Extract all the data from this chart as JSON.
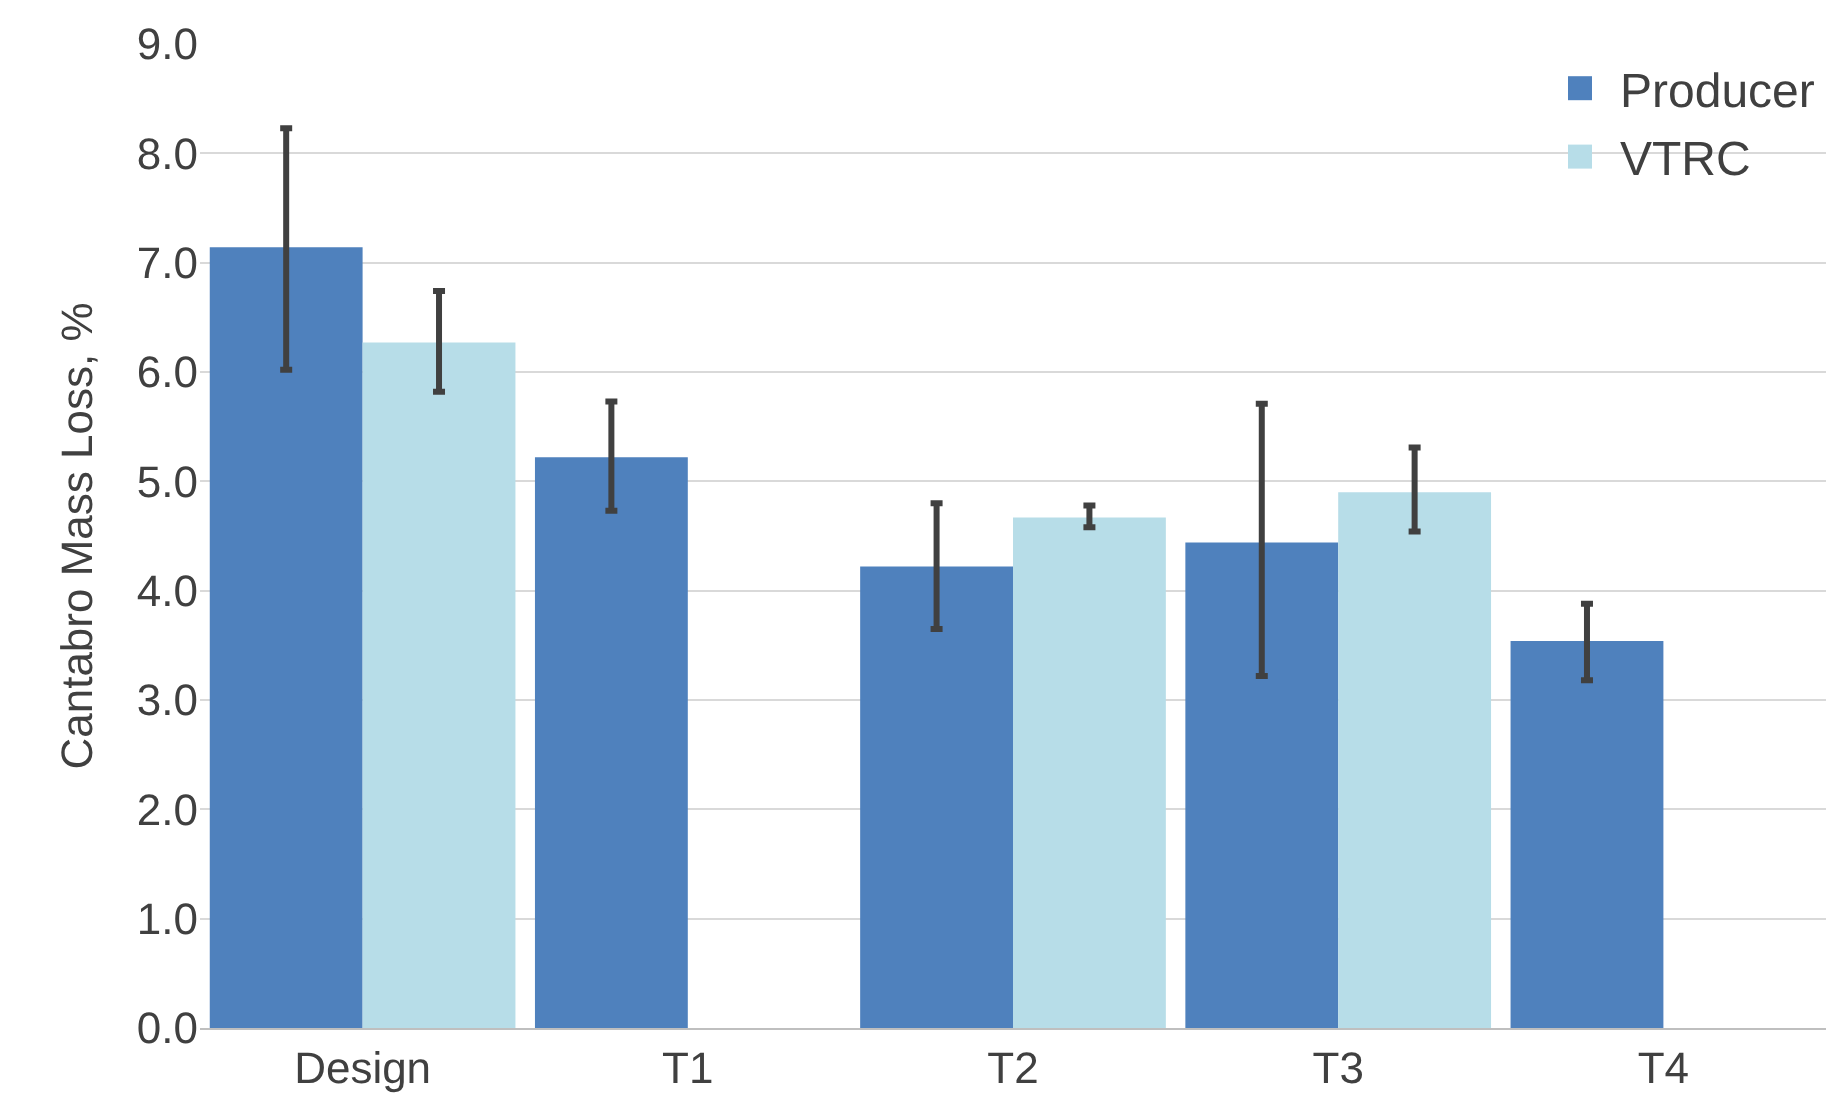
{
  "chart_data": {
    "type": "bar",
    "ylabel": "Cantabro Mass Loss, %",
    "categories": [
      "Design",
      "T1",
      "T2",
      "T3",
      "T4"
    ],
    "series": [
      {
        "name": "Producer",
        "color": "#4f81bd",
        "values": [
          7.14,
          5.22,
          4.22,
          4.44,
          3.54
        ],
        "errors": [
          [
            6.02,
            8.23
          ],
          [
            4.73,
            5.73
          ],
          [
            3.65,
            4.8
          ],
          [
            3.22,
            5.71
          ],
          [
            3.18,
            3.88
          ]
        ]
      },
      {
        "name": "VTRC",
        "color": "#b7dde8",
        "values": [
          6.27,
          null,
          4.67,
          4.9,
          null
        ],
        "errors": [
          [
            5.82,
            6.74
          ],
          null,
          [
            4.58,
            4.78
          ],
          [
            4.54,
            5.31
          ],
          null
        ]
      }
    ],
    "ylim": [
      0,
      9
    ],
    "yticks": [
      {
        "value": 0,
        "label": "0.0"
      },
      {
        "value": 1,
        "label": "1.0"
      },
      {
        "value": 2,
        "label": "2.0"
      },
      {
        "value": 3,
        "label": "3.0"
      },
      {
        "value": 4,
        "label": "4.0"
      },
      {
        "value": 5,
        "label": "5.0"
      },
      {
        "value": 6,
        "label": "6.0"
      },
      {
        "value": 7,
        "label": "7.0"
      },
      {
        "value": 8,
        "label": "8.0"
      },
      {
        "value": 9,
        "label": "9.0"
      }
    ],
    "grid": "y",
    "legend": "top right"
  }
}
